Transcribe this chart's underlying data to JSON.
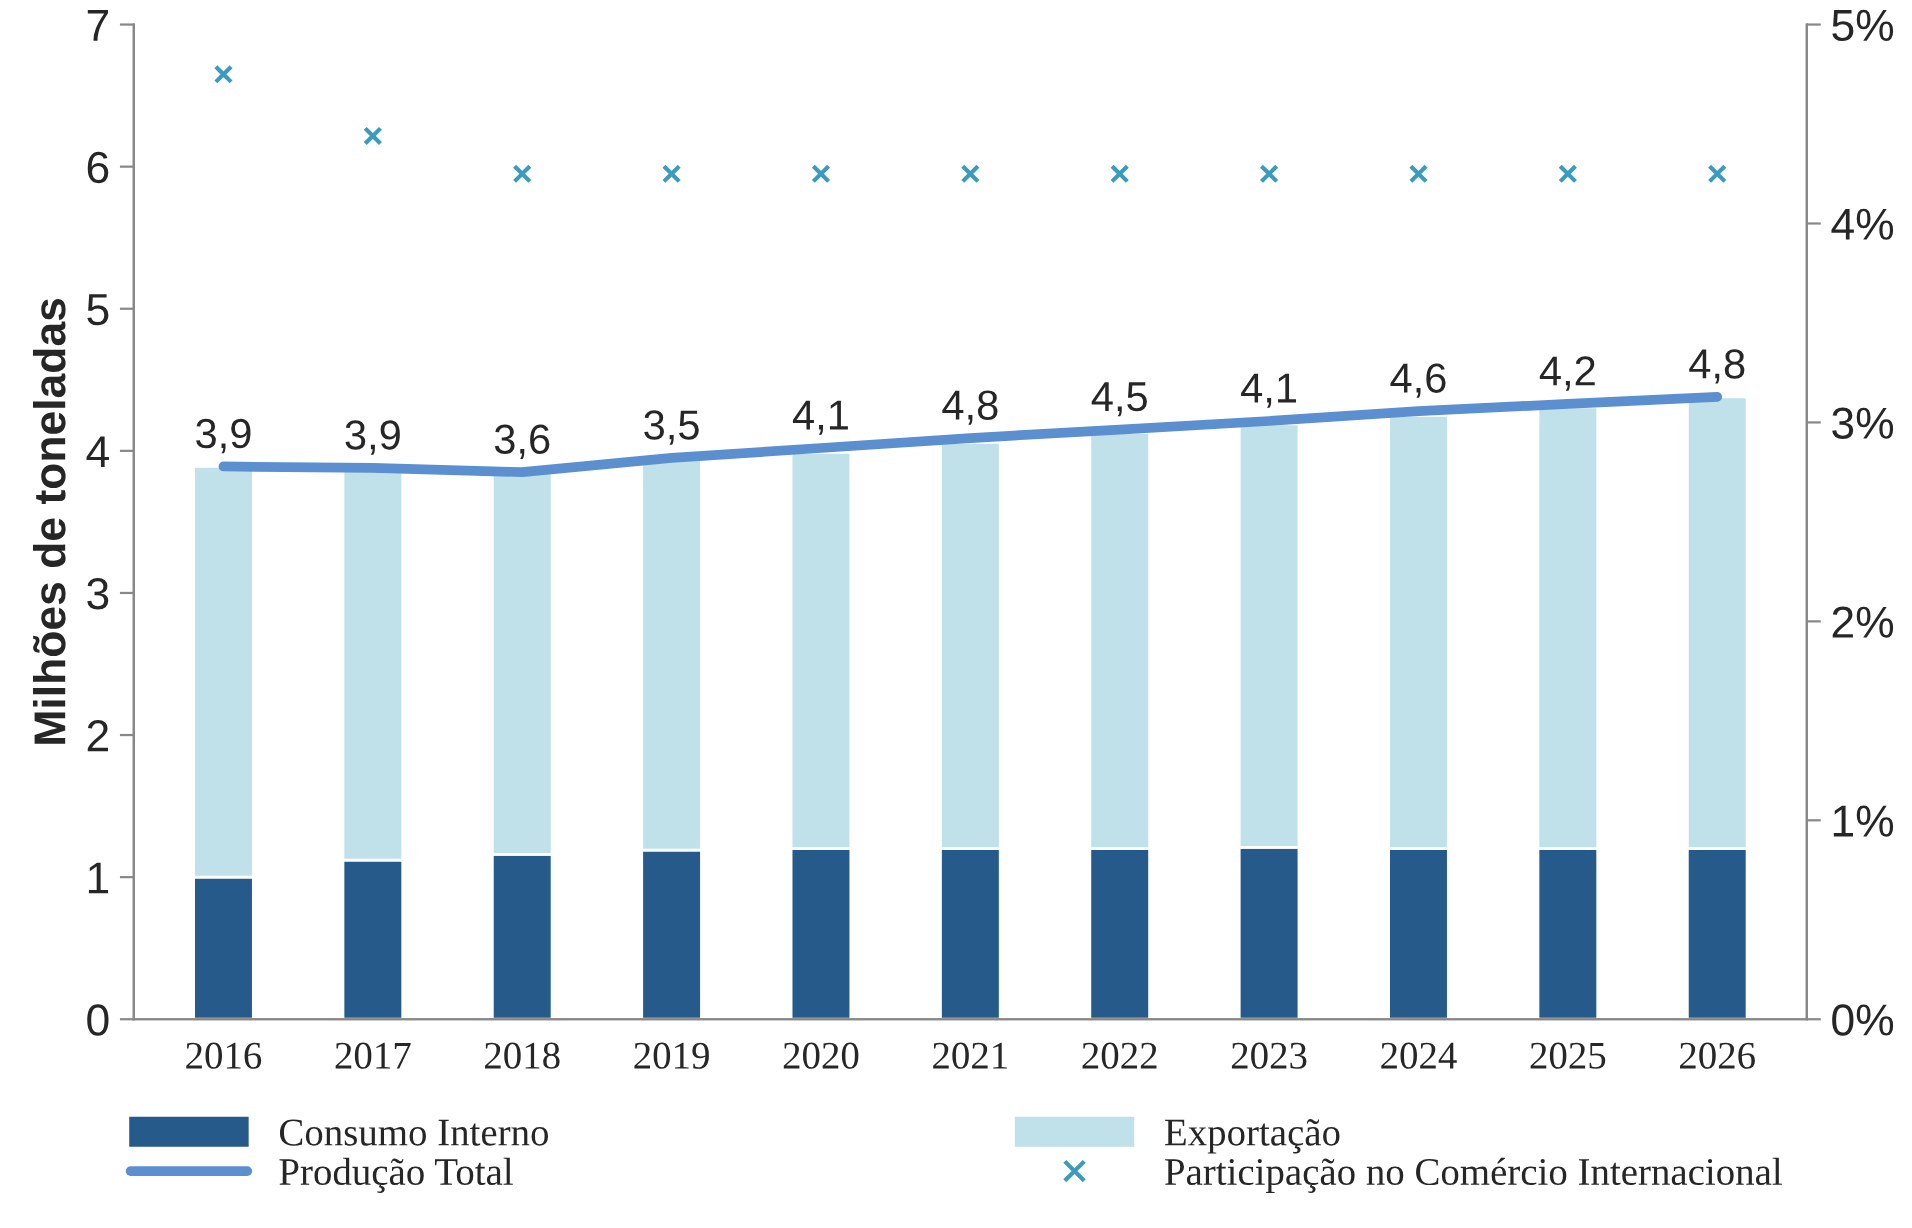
{
  "chart_data": {
    "type": "bar",
    "stacked": true,
    "ylabel": "Milhões de toneladas",
    "categories": [
      "2016",
      "2017",
      "2018",
      "2019",
      "2020",
      "2021",
      "2022",
      "2023",
      "2024",
      "2025",
      "2026"
    ],
    "series": [
      {
        "name": "Consumo Interno",
        "color": "#255a8a",
        "values": [
          1.0,
          1.12,
          1.16,
          1.19,
          1.2,
          1.2,
          1.2,
          1.21,
          1.2,
          1.2,
          1.2
        ]
      },
      {
        "name": "Exportação",
        "color": "#c0e0ea",
        "values": [
          2.89,
          2.77,
          2.69,
          2.75,
          2.79,
          2.86,
          2.93,
          2.98,
          3.05,
          3.11,
          3.18
        ]
      },
      {
        "name": "Produção Total",
        "type": "line",
        "color": "#5b8fcf",
        "values": [
          3.89,
          3.88,
          3.85,
          3.95,
          4.02,
          4.09,
          4.15,
          4.21,
          4.28,
          4.33,
          4.38
        ]
      },
      {
        "name": "Participação no Comércio Internacional",
        "type": "scatter",
        "axis": "y2",
        "marker": "cross",
        "color": "#3a9bbf",
        "values": [
          4.75,
          4.44,
          4.25,
          4.25,
          4.25,
          4.25,
          4.25,
          4.25,
          4.25,
          4.25,
          4.25
        ]
      }
    ],
    "ylim": [
      0,
      7
    ],
    "yticks": [
      0,
      1,
      2,
      3,
      4,
      5,
      6,
      7
    ],
    "y2lim": [
      0,
      5
    ],
    "y2ticks": [
      {
        "value": 0,
        "label": "0%"
      },
      {
        "value": 1,
        "label": "1%"
      },
      {
        "value": 2,
        "label": "2%"
      },
      {
        "value": 3,
        "label": "3%"
      },
      {
        "value": 4,
        "label": "4%"
      },
      {
        "value": 5,
        "label": "5%"
      }
    ],
    "annotations": [
      {
        "text": "3,9",
        "x": "2016",
        "y": 3.89
      },
      {
        "text": "3,9",
        "x": "2017",
        "y": 3.88
      },
      {
        "text": "3,6",
        "x": "2018",
        "y": 3.85
      },
      {
        "text": "3,5",
        "x": "2019",
        "y": 3.95
      },
      {
        "text": "4,1",
        "x": "2020",
        "y": 4.02
      },
      {
        "text": "4,8",
        "x": "2021",
        "y": 4.09
      },
      {
        "text": "4,5",
        "x": "2022",
        "y": 4.15
      },
      {
        "text": "4,1",
        "x": "2023",
        "y": 4.21
      },
      {
        "text": "4,6",
        "x": "2024",
        "y": 4.28
      },
      {
        "text": "4,2",
        "x": "2025",
        "y": 4.33
      },
      {
        "text": "4,8",
        "x": "2026",
        "y": 4.38
      }
    ],
    "grid": false,
    "legend": "bottom"
  }
}
